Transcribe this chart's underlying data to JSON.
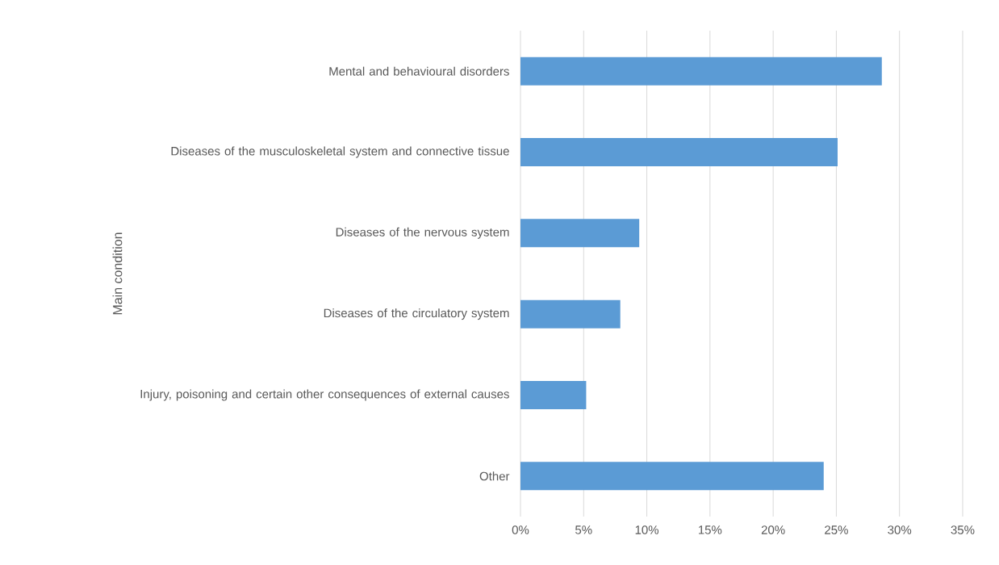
{
  "chart_data": {
    "type": "bar",
    "orientation": "horizontal",
    "ylabel": "Main condition",
    "categories": [
      "Mental and behavioural disorders",
      "Diseases of the musculoskeletal system and connective tissue",
      "Diseases of the nervous system",
      "Diseases of the circulatory system",
      "Injury, poisoning and certain other consequences of external causes",
      "Other"
    ],
    "values": [
      28.6,
      25.1,
      9.4,
      7.9,
      5.2,
      24.0
    ],
    "color": "#5b9bd5",
    "xlim": [
      0,
      35
    ],
    "xticks": [
      {
        "value": 0,
        "label": "0%"
      },
      {
        "value": 5,
        "label": "5%"
      },
      {
        "value": 10,
        "label": "10%"
      },
      {
        "value": 15,
        "label": "15%"
      },
      {
        "value": 20,
        "label": "20%"
      },
      {
        "value": 25,
        "label": "25%"
      },
      {
        "value": 30,
        "label": "30%"
      },
      {
        "value": 35,
        "label": "35%"
      }
    ],
    "grid": "x"
  }
}
